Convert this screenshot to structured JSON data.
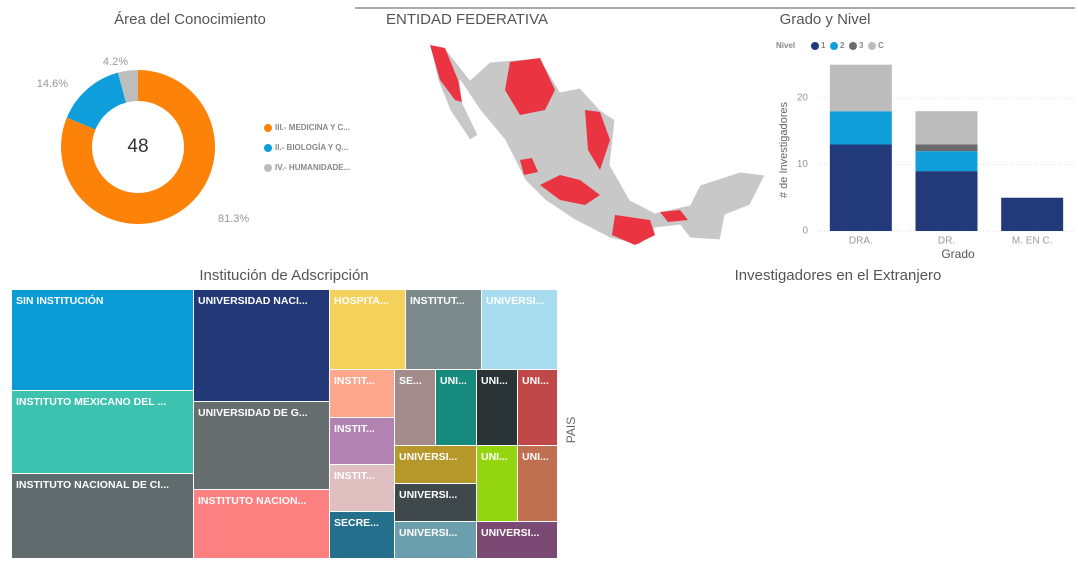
{
  "chart_data": [
    {
      "type": "donut",
      "title": "Área del Conocimiento",
      "categories": [
        "III.- MEDICINA Y C...",
        "II.- BIOLOGÍA Y Q...",
        "IV.- HUMANIDADE..."
      ],
      "values": [
        81.3,
        14.6,
        4.2
      ],
      "value_labels": [
        "81.3%",
        "14.6%",
        "4.2%"
      ],
      "colors": [
        "#fd8208",
        "#0d9edb",
        "#bdbdbd"
      ],
      "total": 48
    },
    {
      "type": "stacked_bar",
      "title": "Grado y Nivel",
      "legend_title": "Nivel",
      "x_label": "Grado",
      "y_label": "# de Investigadores",
      "categories": [
        "DRA.",
        "DR.",
        "M. EN C."
      ],
      "series": [
        {
          "name": "1",
          "color": "#233a7a",
          "values": [
            13,
            9,
            5
          ]
        },
        {
          "name": "2",
          "color": "#119fdb",
          "values": [
            5,
            3,
            0
          ]
        },
        {
          "name": "3",
          "color": "#6b6b6b",
          "values": [
            0,
            1,
            0
          ]
        },
        {
          "name": "C",
          "color": "#bcbcbc",
          "values": [
            7,
            5,
            0
          ]
        }
      ],
      "ylim": [
        0,
        26
      ],
      "yticks": [
        0,
        10,
        20
      ],
      "grid": true
    }
  ],
  "map": {
    "title": "ENTIDAD FEDERATIVA"
  },
  "treemap": {
    "title": "Institución de Adscripción",
    "items": [
      {
        "label": "SIN INSTITUCIÓN",
        "color": "#0a9ad6"
      },
      {
        "label": "INSTITUTO MEXICANO DEL ...",
        "color": "#3dc2b0"
      },
      {
        "label": "INSTITUTO NACIONAL DE CI...",
        "color": "#5f6b6d"
      },
      {
        "label": "UNIVERSIDAD NACI...",
        "color": "#233876"
      },
      {
        "label": "UNIVERSIDAD DE G...",
        "color": "#666e70"
      },
      {
        "label": "INSTITUTO NACION...",
        "color": "#fd8080"
      },
      {
        "label": "HOSPITA...",
        "color": "#f3d15a"
      },
      {
        "label": "INSTITUT...",
        "color": "#7d8a8c"
      },
      {
        "label": "UNIVERSI...",
        "color": "#a6dcee"
      },
      {
        "label": "INSTIT...",
        "color": "#fca68b"
      },
      {
        "label": "INSTIT...",
        "color": "#b282b2"
      },
      {
        "label": "INSTIT...",
        "color": "#dfbfc0"
      },
      {
        "label": "SECRE...",
        "color": "#236f8c"
      },
      {
        "label": "SE...",
        "color": "#a48c8c"
      },
      {
        "label": "UNI...",
        "color": "#178a7e"
      },
      {
        "label": "UNI...",
        "color": "#2a3336"
      },
      {
        "label": "UNI...",
        "color": "#c14848"
      },
      {
        "label": "UNIVERSI...",
        "color": "#b5972a"
      },
      {
        "label": "UNIVERSI...",
        "color": "#3f484b"
      },
      {
        "label": "UNIVERSI...",
        "color": "#6c9fad"
      },
      {
        "label": "UNI...",
        "color": "#93d60f"
      },
      {
        "label": "UNI...",
        "color": "#bf6f4f"
      },
      {
        "label": "UNIVERSI...",
        "color": "#7b4a74"
      }
    ]
  },
  "foreign": {
    "title": "Investigadores en el Extranjero",
    "axis_label": "PAIS"
  }
}
